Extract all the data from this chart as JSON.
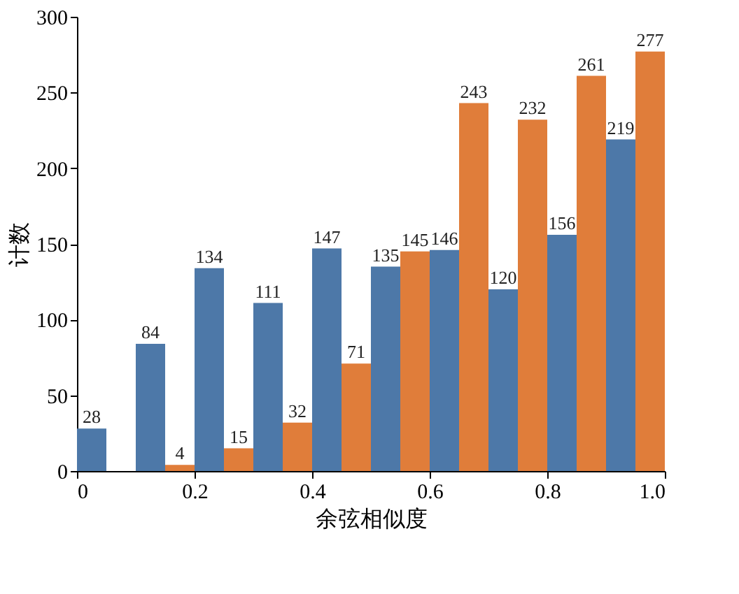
{
  "chart_data": {
    "type": "bar",
    "xlabel": "余弦相似度",
    "ylabel": "计数",
    "x": [
      0.05,
      0.15,
      0.25,
      0.35,
      0.45,
      0.55,
      0.65,
      0.75,
      0.85,
      0.95
    ],
    "series": [
      {
        "color": "#4d78a8",
        "values": [
          28,
          84,
          134,
          111,
          147,
          135,
          146,
          120,
          156,
          219
        ]
      },
      {
        "color": "#e07d3a",
        "values": [
          null,
          4,
          15,
          32,
          71,
          145,
          243,
          232,
          261,
          277
        ]
      }
    ],
    "xlim": [
      0,
      1
    ],
    "xticks": [
      0,
      0.2,
      0.4,
      0.6,
      0.8,
      {
        "value": 1,
        "label": "1.0"
      }
    ],
    "ylim": [
      0,
      300
    ],
    "yticks": [
      0,
      50,
      100,
      150,
      200,
      250,
      300
    ],
    "data_labels": true,
    "grid": false
  }
}
